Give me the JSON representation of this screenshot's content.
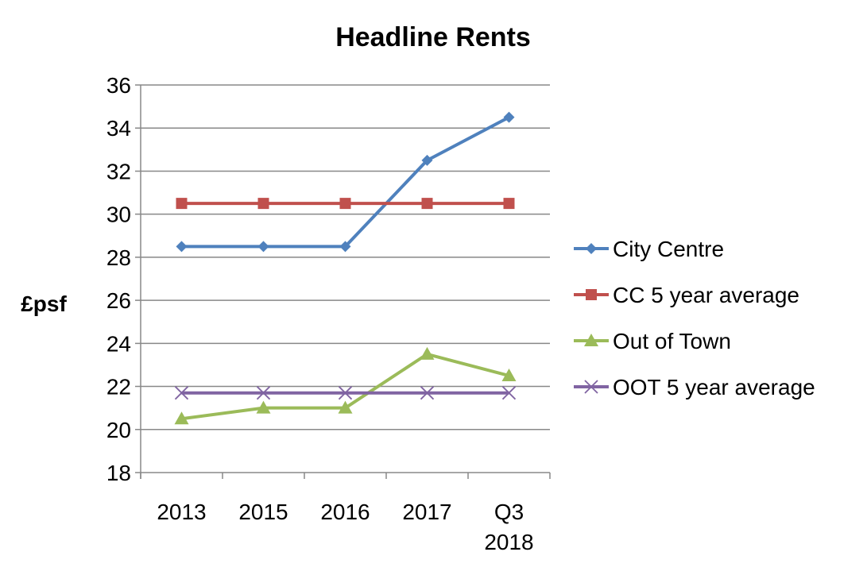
{
  "chart_data": {
    "type": "line",
    "title": "Headline Rents",
    "xlabel": "",
    "ylabel": "£psf",
    "categories": [
      "2013",
      "2015",
      "2016",
      "2017",
      "Q3 2018"
    ],
    "ylim": [
      18,
      36
    ],
    "yticks": [
      18,
      20,
      22,
      24,
      26,
      28,
      30,
      32,
      34,
      36
    ],
    "grid": "horizontal",
    "legend": "right",
    "series": [
      {
        "name": "City Centre",
        "color": "#4F81BD",
        "marker": "diamond",
        "values": [
          28.5,
          28.5,
          28.5,
          32.5,
          34.5
        ]
      },
      {
        "name": "CC 5 year average",
        "color": "#C0504D",
        "marker": "square",
        "values": [
          30.5,
          30.5,
          30.5,
          30.5,
          30.5
        ]
      },
      {
        "name": "Out of Town",
        "color": "#9BBB59",
        "marker": "triangle",
        "values": [
          20.5,
          21,
          21,
          23.5,
          22.5
        ]
      },
      {
        "name": "OOT 5 year average",
        "color": "#8064A2",
        "marker": "x",
        "values": [
          21.7,
          21.7,
          21.7,
          21.7,
          21.7
        ]
      }
    ]
  }
}
